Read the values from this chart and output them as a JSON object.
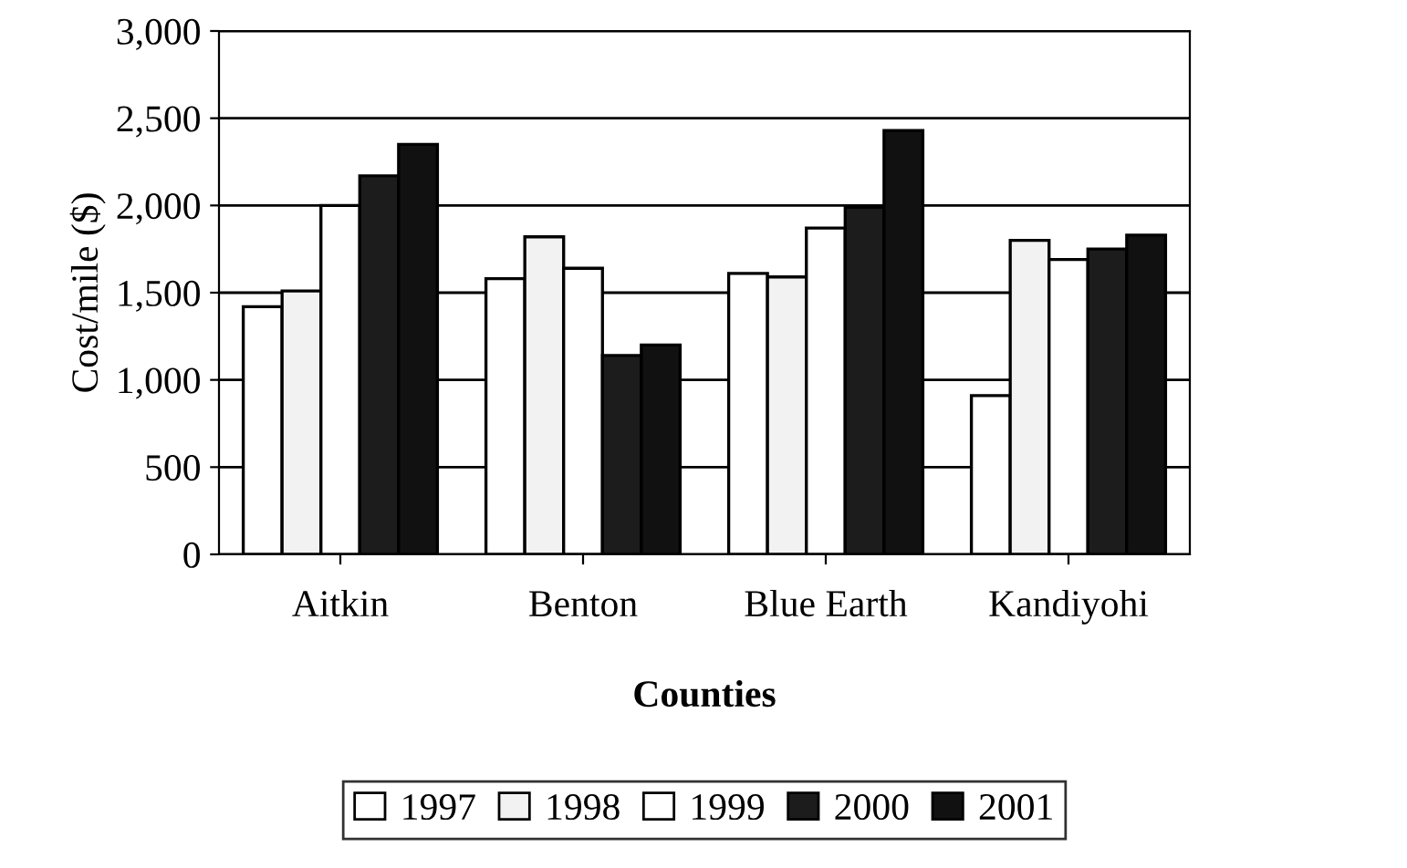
{
  "chart_data": {
    "type": "bar",
    "xlabel": "Counties",
    "ylabel": "Cost/mile ($)",
    "categories": [
      "Aitkin",
      "Benton",
      "Blue Earth",
      "Kandiyohi"
    ],
    "series": [
      {
        "name": "1997",
        "color": "#ffffff",
        "values": [
          1420,
          1580,
          1610,
          910
        ]
      },
      {
        "name": "1998",
        "color": "#f2f2f2",
        "values": [
          1510,
          1820,
          1590,
          1800
        ]
      },
      {
        "name": "1999",
        "color": "#ffffff",
        "values": [
          2000,
          1640,
          1870,
          1690
        ]
      },
      {
        "name": "2000",
        "color": "#1c1c1c",
        "values": [
          2170,
          1140,
          1990,
          1750
        ]
      },
      {
        "name": "2001",
        "color": "#111111",
        "values": [
          2350,
          1200,
          2430,
          1830
        ]
      }
    ],
    "ylim": [
      0,
      3000
    ],
    "yticks": [
      {
        "value": 0,
        "label": "0"
      },
      {
        "value": 500,
        "label": "500"
      },
      {
        "value": 1000,
        "label": "1,000"
      },
      {
        "value": 1500,
        "label": "1,500"
      },
      {
        "value": 2000,
        "label": "2,000"
      },
      {
        "value": 2500,
        "label": "2,500"
      },
      {
        "value": 3000,
        "label": "3,000"
      }
    ],
    "grid": "y",
    "legend": "bottom"
  }
}
